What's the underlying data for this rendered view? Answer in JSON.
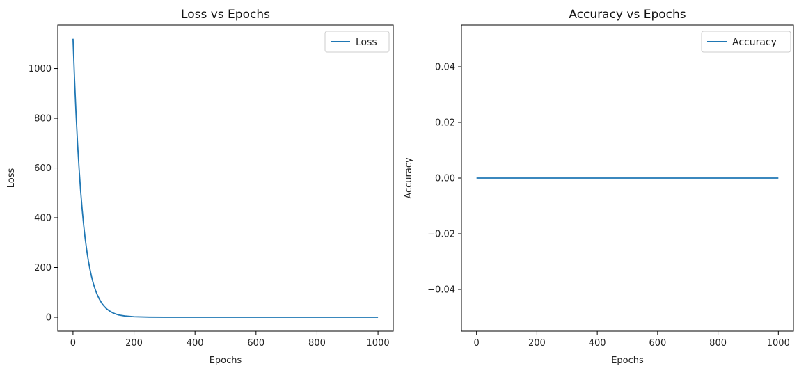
{
  "line_color": "#1f77b4",
  "chart_data": [
    {
      "type": "line",
      "title": "Loss vs Epochs",
      "xlabel": "Epochs",
      "ylabel": "Loss",
      "xlim": [
        -50,
        1050
      ],
      "ylim": [
        -56,
        1175
      ],
      "xticks": [
        0,
        200,
        400,
        600,
        800,
        1000
      ],
      "yticks": [
        0,
        200,
        400,
        600,
        800,
        1000
      ],
      "ytick_labels": [
        "0",
        "200",
        "400",
        "600",
        "800",
        "1000"
      ],
      "grid": false,
      "legend_position": "top-right",
      "series": [
        {
          "name": "Loss",
          "x": [
            0,
            5,
            10,
            15,
            20,
            25,
            30,
            35,
            40,
            45,
            50,
            55,
            60,
            65,
            70,
            75,
            80,
            85,
            90,
            95,
            100,
            110,
            120,
            130,
            140,
            150,
            170,
            200,
            250,
            300,
            400,
            500,
            600,
            700,
            800,
            900,
            1000
          ],
          "y": [
            1120,
            955,
            815,
            695,
            595,
            507,
            433,
            369,
            315,
            269,
            229,
            196,
            167,
            143,
            122,
            104,
            89,
            76,
            65,
            55,
            47,
            34,
            25,
            18,
            13,
            9,
            5,
            2,
            0.5,
            0.1,
            0,
            0,
            0,
            0,
            0,
            0,
            0
          ]
        }
      ]
    },
    {
      "type": "line",
      "title": "Accuracy vs Epochs",
      "xlabel": "Epochs",
      "ylabel": "Accuracy",
      "xlim": [
        -50,
        1050
      ],
      "ylim": [
        -0.055,
        0.055
      ],
      "xticks": [
        0,
        200,
        400,
        600,
        800,
        1000
      ],
      "yticks": [
        0.04,
        0.02,
        0.0,
        -0.02,
        -0.04
      ],
      "ytick_labels": [
        "0.04",
        "0.02",
        "0.00",
        "−0.02",
        "−0.04"
      ],
      "grid": false,
      "legend_position": "top-right",
      "series": [
        {
          "name": "Accuracy",
          "x": [
            0,
            1000
          ],
          "y": [
            0,
            0
          ]
        }
      ]
    }
  ]
}
